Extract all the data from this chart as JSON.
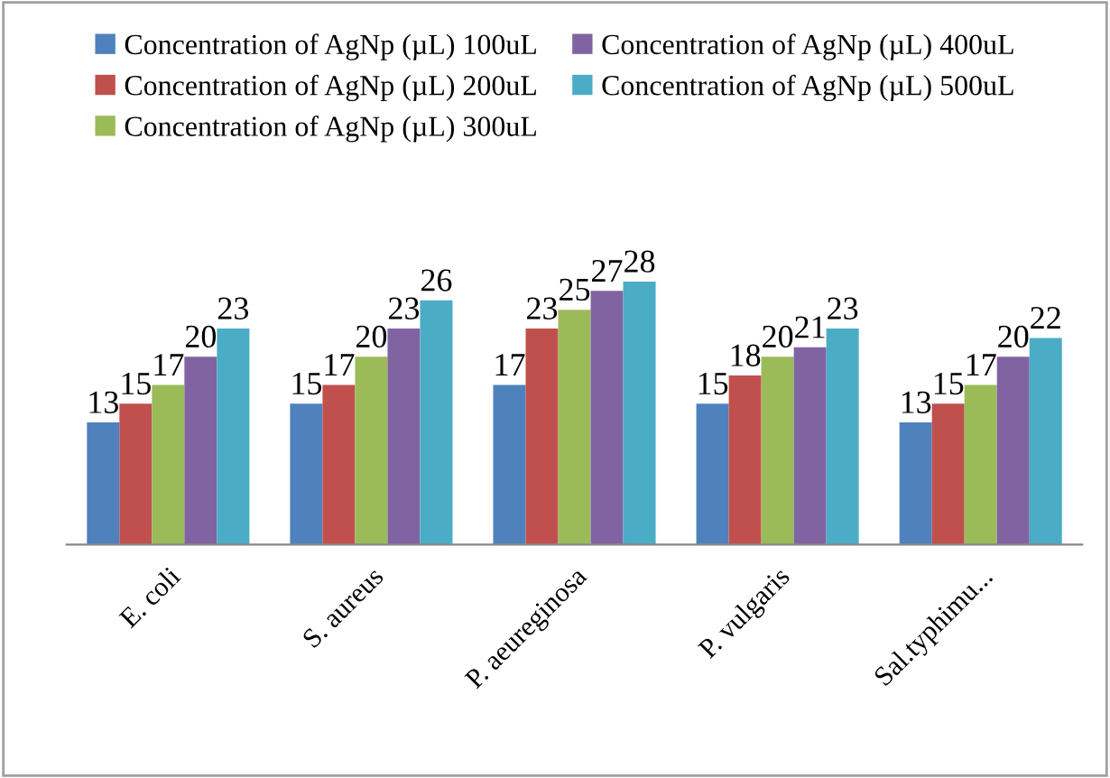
{
  "chart_data": {
    "type": "bar",
    "categories": [
      "E. coli",
      "S. aureus",
      "P. aeureginosa",
      "P. vulgaris",
      "Sal.typhimu..."
    ],
    "series": [
      {
        "name": "Concentration of AgNp (µL) 100uL",
        "color": "#4f81bd",
        "values": [
          13,
          15,
          17,
          15,
          13
        ]
      },
      {
        "name": "Concentration of AgNp (µL) 200uL",
        "color": "#c0504d",
        "values": [
          15,
          17,
          23,
          18,
          15
        ]
      },
      {
        "name": "Concentration of AgNp (µL) 300uL",
        "color": "#9bbb59",
        "values": [
          17,
          20,
          25,
          20,
          17
        ]
      },
      {
        "name": "Concentration of AgNp (µL) 400uL",
        "color": "#8064a2",
        "values": [
          20,
          23,
          27,
          21,
          20
        ]
      },
      {
        "name": "Concentration of AgNp (µL) 500uL",
        "color": "#4bacc6",
        "values": [
          23,
          26,
          28,
          23,
          22
        ]
      }
    ],
    "data_labels": true,
    "legend": "top",
    "grid": false
  }
}
